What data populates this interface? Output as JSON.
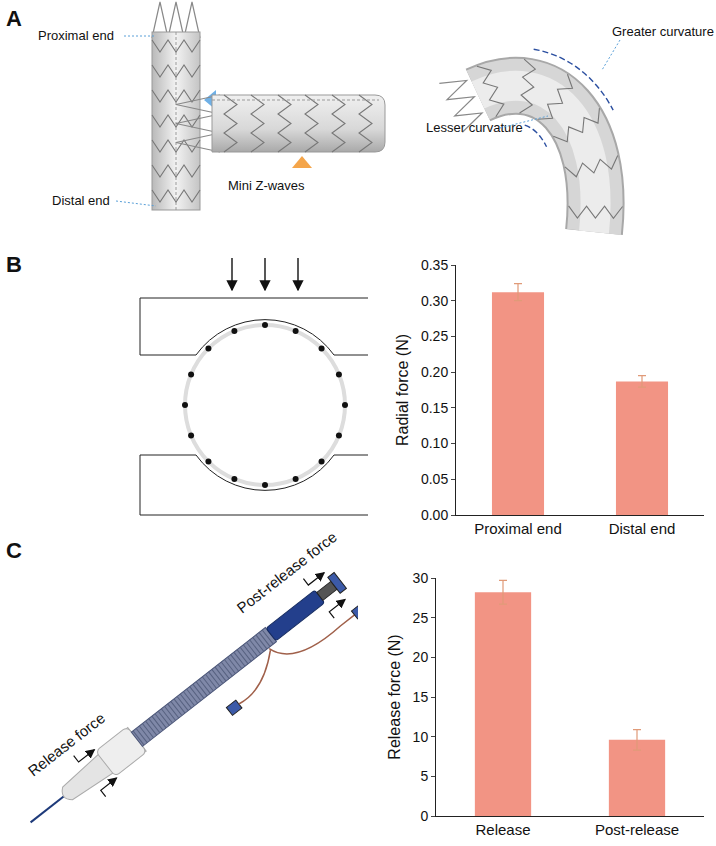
{
  "panels": {
    "A": {
      "label": "A",
      "texts": {
        "proximal": "Proximal end",
        "distal": "Distal end",
        "mini": "Mini Z-waves",
        "greater": "Greater curvature",
        "lesser": "Lesser curvature"
      }
    },
    "B": {
      "label": "B"
    },
    "C": {
      "label": "C",
      "texts": {
        "release": "Release force",
        "post": "Post-release force"
      }
    }
  },
  "chart_data": [
    {
      "type": "bar",
      "categories": [
        "Proximal end",
        "Distal end"
      ],
      "values": [
        0.312,
        0.187
      ],
      "errors": [
        0.012,
        0.008
      ],
      "color": "#f29484",
      "y_label": "Radial force (N)",
      "ylim": [
        0,
        0.35
      ],
      "yticks": [
        {
          "value": 0,
          "label": "0.00"
        },
        0.05,
        {
          "value": 0.1,
          "label": "0.10"
        },
        0.15,
        {
          "value": 0.2,
          "label": "0.20"
        },
        0.25,
        {
          "value": 0.3,
          "label": "0.30"
        },
        0.35
      ],
      "grid": false
    },
    {
      "type": "bar",
      "categories": [
        "Release",
        "Post-release"
      ],
      "values": [
        28.2,
        9.6
      ],
      "errors": [
        1.5,
        1.3
      ],
      "color": "#f29484",
      "y_label": "Release force (N)",
      "ylim": [
        0,
        30
      ],
      "yticks": [
        0,
        5,
        10,
        15,
        20,
        25,
        30
      ],
      "grid": false
    }
  ]
}
